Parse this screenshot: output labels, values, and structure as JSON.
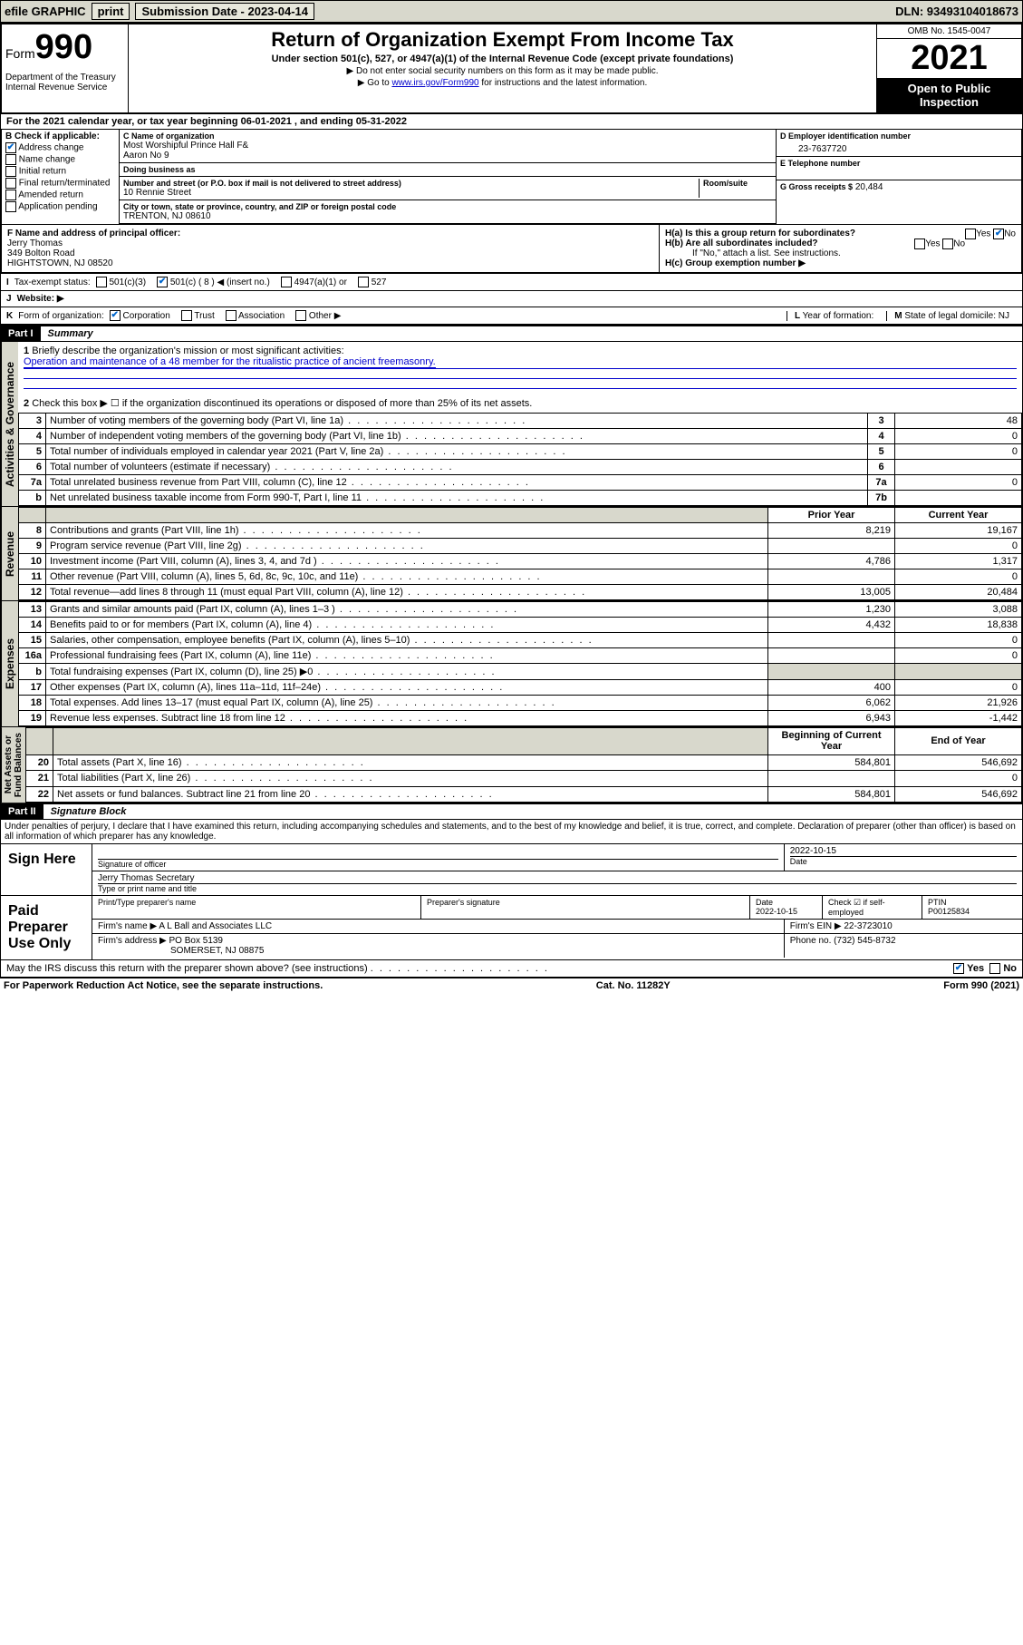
{
  "topbar": {
    "efile": "efile GRAPHIC",
    "print": "print",
    "submission": "Submission Date - 2023-04-14",
    "dln": "DLN: 93493104018673"
  },
  "header": {
    "form_prefix": "Form",
    "form_number": "990",
    "title": "Return of Organization Exempt From Income Tax",
    "subtitle": "Under section 501(c), 527, or 4947(a)(1) of the Internal Revenue Code (except private foundations)",
    "note1": "▶ Do not enter social security numbers on this form as it may be made public.",
    "note2_pre": "▶ Go to ",
    "note2_link": "www.irs.gov/Form990",
    "note2_post": " for instructions and the latest information.",
    "dept": "Department of the Treasury\nInternal Revenue Service",
    "omb": "OMB No. 1545-0047",
    "year": "2021",
    "inspect": "Open to Public Inspection"
  },
  "tax_year": "For the 2021 calendar year, or tax year beginning 06-01-2021   , and ending 05-31-2022",
  "section_b": {
    "title": "B Check if applicable:",
    "opts": [
      "Address change",
      "Name change",
      "Initial return",
      "Final return/terminated",
      "Amended return",
      "Application pending"
    ],
    "checked_idx": 0
  },
  "section_c": {
    "name_lbl": "C Name of organization",
    "name": "Most Worshipful Prince Hall F&\nAaron No 9",
    "dba_lbl": "Doing business as",
    "dba": "",
    "addr_lbl": "Number and street (or P.O. box if mail is not delivered to street address)",
    "suite_lbl": "Room/suite",
    "addr": "10 Rennie Street",
    "city_lbl": "City or town, state or province, country, and ZIP or foreign postal code",
    "city": "TRENTON, NJ  08610"
  },
  "section_d": {
    "ein_lbl": "D Employer identification number",
    "ein": "23-7637720",
    "tel_lbl": "E Telephone number",
    "tel": "",
    "gross_lbl": "G Gross receipts $",
    "gross": "20,484"
  },
  "section_f": {
    "lbl": "F Name and address of principal officer:",
    "name": "Jerry Thomas",
    "addr1": "349 Bolton Road",
    "addr2": "HIGHTSTOWN, NJ  08520"
  },
  "section_h": {
    "ha": "H(a)  Is this a group return for subordinates?",
    "hb": "H(b)  Are all subordinates included?",
    "hb_note": "If \"No,\" attach a list. See instructions.",
    "hc": "H(c)  Group exemption number ▶",
    "yes": "Yes",
    "no": "No"
  },
  "tax_status": {
    "lbl": "Tax-exempt status:",
    "opts": [
      "501(c)(3)",
      "501(c) ( 8 ) ◀ (insert no.)",
      "4947(a)(1) or",
      "527"
    ],
    "checked_idx": 1,
    "letter": "I"
  },
  "website": {
    "letter": "J",
    "lbl": "Website: ▶",
    "val": ""
  },
  "form_org": {
    "letter": "K",
    "lbl": "Form of organization:",
    "opts": [
      "Corporation",
      "Trust",
      "Association",
      "Other ▶"
    ],
    "checked_idx": 0
  },
  "year_formation": {
    "letter": "L",
    "lbl": "Year of formation:",
    "val": ""
  },
  "domicile": {
    "letter": "M",
    "lbl": "State of legal domicile:",
    "val": "NJ"
  },
  "part1": {
    "hdr": "Part I",
    "title": "Summary",
    "q1_lbl": "Briefly describe the organization's mission or most significant activities:",
    "q1_val": "Operation and maintenance of a 48 member for the ritualistic practice of ancient freemasonry.",
    "q2": "Check this box ▶ ☐  if the organization discontinued its operations or disposed of more than 25% of its net assets.",
    "governance_tab": "Activities & Governance",
    "revenue_tab": "Revenue",
    "expenses_tab": "Expenses",
    "netassets_tab": "Net Assets or\nFund Balances",
    "rows_g": [
      {
        "n": "3",
        "t": "Number of voting members of the governing body (Part VI, line 1a)",
        "box": "3",
        "v": "48"
      },
      {
        "n": "4",
        "t": "Number of independent voting members of the governing body (Part VI, line 1b)",
        "box": "4",
        "v": "0"
      },
      {
        "n": "5",
        "t": "Total number of individuals employed in calendar year 2021 (Part V, line 2a)",
        "box": "5",
        "v": "0"
      },
      {
        "n": "6",
        "t": "Total number of volunteers (estimate if necessary)",
        "box": "6",
        "v": ""
      },
      {
        "n": "7a",
        "t": "Total unrelated business revenue from Part VIII, column (C), line 12",
        "box": "7a",
        "v": "0"
      },
      {
        "n": "b",
        "t": "Net unrelated business taxable income from Form 990-T, Part I, line 11",
        "box": "7b",
        "v": ""
      }
    ],
    "col_headers": {
      "prior": "Prior Year",
      "current": "Current Year"
    },
    "rows_r": [
      {
        "n": "8",
        "t": "Contributions and grants (Part VIII, line 1h)",
        "p": "8,219",
        "c": "19,167"
      },
      {
        "n": "9",
        "t": "Program service revenue (Part VIII, line 2g)",
        "p": "",
        "c": "0"
      },
      {
        "n": "10",
        "t": "Investment income (Part VIII, column (A), lines 3, 4, and 7d )",
        "p": "4,786",
        "c": "1,317"
      },
      {
        "n": "11",
        "t": "Other revenue (Part VIII, column (A), lines 5, 6d, 8c, 9c, 10c, and 11e)",
        "p": "",
        "c": "0"
      },
      {
        "n": "12",
        "t": "Total revenue—add lines 8 through 11 (must equal Part VIII, column (A), line 12)",
        "p": "13,005",
        "c": "20,484"
      }
    ],
    "rows_e": [
      {
        "n": "13",
        "t": "Grants and similar amounts paid (Part IX, column (A), lines 1–3 )",
        "p": "1,230",
        "c": "3,088"
      },
      {
        "n": "14",
        "t": "Benefits paid to or for members (Part IX, column (A), line 4)",
        "p": "4,432",
        "c": "18,838"
      },
      {
        "n": "15",
        "t": "Salaries, other compensation, employee benefits (Part IX, column (A), lines 5–10)",
        "p": "",
        "c": "0"
      },
      {
        "n": "16a",
        "t": "Professional fundraising fees (Part IX, column (A), line 11e)",
        "p": "",
        "c": "0"
      },
      {
        "n": "b",
        "t": "Total fundraising expenses (Part IX, column (D), line 25) ▶0",
        "p": "SHADE",
        "c": "SHADE"
      },
      {
        "n": "17",
        "t": "Other expenses (Part IX, column (A), lines 11a–11d, 11f–24e)",
        "p": "400",
        "c": "0"
      },
      {
        "n": "18",
        "t": "Total expenses. Add lines 13–17 (must equal Part IX, column (A), line 25)",
        "p": "6,062",
        "c": "21,926"
      },
      {
        "n": "19",
        "t": "Revenue less expenses. Subtract line 18 from line 12",
        "p": "6,943",
        "c": "-1,442"
      }
    ],
    "col_headers2": {
      "begin": "Beginning of Current Year",
      "end": "End of Year"
    },
    "rows_n": [
      {
        "n": "20",
        "t": "Total assets (Part X, line 16)",
        "p": "584,801",
        "c": "546,692"
      },
      {
        "n": "21",
        "t": "Total liabilities (Part X, line 26)",
        "p": "",
        "c": "0"
      },
      {
        "n": "22",
        "t": "Net assets or fund balances. Subtract line 21 from line 20",
        "p": "584,801",
        "c": "546,692"
      }
    ]
  },
  "part2": {
    "hdr": "Part II",
    "title": "Signature Block",
    "penalty": "Under penalties of perjury, I declare that I have examined this return, including accompanying schedules and statements, and to the best of my knowledge and belief, it is true, correct, and complete. Declaration of preparer (other than officer) is based on all information of which preparer has any knowledge.",
    "sign_here": "Sign Here",
    "sig_officer": "Signature of officer",
    "sig_date": "2022-10-15",
    "date_lbl": "Date",
    "officer_name": "Jerry Thomas Secretary",
    "officer_name_lbl": "Type or print name and title",
    "paid_prep": "Paid Preparer Use Only",
    "prep_name_lbl": "Print/Type preparer's name",
    "prep_sig_lbl": "Preparer's signature",
    "prep_date_lbl": "Date",
    "prep_date": "2022-10-15",
    "self_emp": "Check ☑ if self-employed",
    "ptin_lbl": "PTIN",
    "ptin": "P00125834",
    "firm_name_lbl": "Firm's name    ▶",
    "firm_name": "A L Ball and Associates LLC",
    "firm_ein_lbl": "Firm's EIN ▶",
    "firm_ein": "22-3723010",
    "firm_addr_lbl": "Firm's address ▶",
    "firm_addr1": "PO Box 5139",
    "firm_addr2": "SOMERSET, NJ  08875",
    "phone_lbl": "Phone no.",
    "phone": "(732) 545-8732",
    "discuss": "May the IRS discuss this return with the preparer shown above? (see instructions)",
    "discuss_yes": "Yes",
    "discuss_no": "No"
  },
  "footer": {
    "pra": "For Paperwork Reduction Act Notice, see the separate instructions.",
    "cat": "Cat. No. 11282Y",
    "form": "Form 990 (2021)"
  }
}
